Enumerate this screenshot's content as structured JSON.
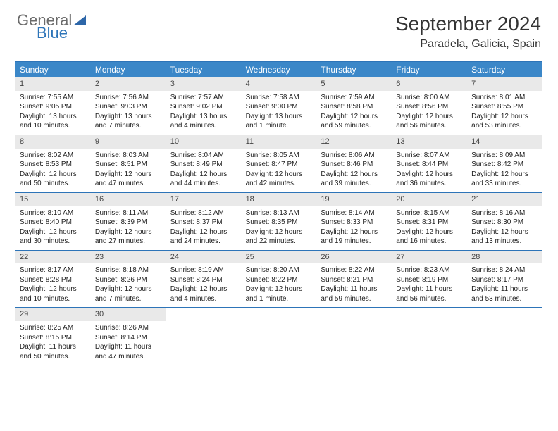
{
  "logo": {
    "top": "General",
    "bottom": "Blue"
  },
  "title": "September 2024",
  "location": "Paradela, Galicia, Spain",
  "colors": {
    "header_bar": "#3b87c8",
    "accent": "#2d74b8",
    "daynum_bg": "#e9e9e9",
    "text": "#222222",
    "logo_gray": "#6b6b6b",
    "logo_blue": "#2d74b8"
  },
  "calendar": {
    "type": "table",
    "day_names": [
      "Sunday",
      "Monday",
      "Tuesday",
      "Wednesday",
      "Thursday",
      "Friday",
      "Saturday"
    ],
    "weeks": [
      [
        {
          "n": "1",
          "sr": "7:55 AM",
          "ss": "9:05 PM",
          "dl": "13 hours and 10 minutes."
        },
        {
          "n": "2",
          "sr": "7:56 AM",
          "ss": "9:03 PM",
          "dl": "13 hours and 7 minutes."
        },
        {
          "n": "3",
          "sr": "7:57 AM",
          "ss": "9:02 PM",
          "dl": "13 hours and 4 minutes."
        },
        {
          "n": "4",
          "sr": "7:58 AM",
          "ss": "9:00 PM",
          "dl": "13 hours and 1 minute."
        },
        {
          "n": "5",
          "sr": "7:59 AM",
          "ss": "8:58 PM",
          "dl": "12 hours and 59 minutes."
        },
        {
          "n": "6",
          "sr": "8:00 AM",
          "ss": "8:56 PM",
          "dl": "12 hours and 56 minutes."
        },
        {
          "n": "7",
          "sr": "8:01 AM",
          "ss": "8:55 PM",
          "dl": "12 hours and 53 minutes."
        }
      ],
      [
        {
          "n": "8",
          "sr": "8:02 AM",
          "ss": "8:53 PM",
          "dl": "12 hours and 50 minutes."
        },
        {
          "n": "9",
          "sr": "8:03 AM",
          "ss": "8:51 PM",
          "dl": "12 hours and 47 minutes."
        },
        {
          "n": "10",
          "sr": "8:04 AM",
          "ss": "8:49 PM",
          "dl": "12 hours and 44 minutes."
        },
        {
          "n": "11",
          "sr": "8:05 AM",
          "ss": "8:47 PM",
          "dl": "12 hours and 42 minutes."
        },
        {
          "n": "12",
          "sr": "8:06 AM",
          "ss": "8:46 PM",
          "dl": "12 hours and 39 minutes."
        },
        {
          "n": "13",
          "sr": "8:07 AM",
          "ss": "8:44 PM",
          "dl": "12 hours and 36 minutes."
        },
        {
          "n": "14",
          "sr": "8:09 AM",
          "ss": "8:42 PM",
          "dl": "12 hours and 33 minutes."
        }
      ],
      [
        {
          "n": "15",
          "sr": "8:10 AM",
          "ss": "8:40 PM",
          "dl": "12 hours and 30 minutes."
        },
        {
          "n": "16",
          "sr": "8:11 AM",
          "ss": "8:39 PM",
          "dl": "12 hours and 27 minutes."
        },
        {
          "n": "17",
          "sr": "8:12 AM",
          "ss": "8:37 PM",
          "dl": "12 hours and 24 minutes."
        },
        {
          "n": "18",
          "sr": "8:13 AM",
          "ss": "8:35 PM",
          "dl": "12 hours and 22 minutes."
        },
        {
          "n": "19",
          "sr": "8:14 AM",
          "ss": "8:33 PM",
          "dl": "12 hours and 19 minutes."
        },
        {
          "n": "20",
          "sr": "8:15 AM",
          "ss": "8:31 PM",
          "dl": "12 hours and 16 minutes."
        },
        {
          "n": "21",
          "sr": "8:16 AM",
          "ss": "8:30 PM",
          "dl": "12 hours and 13 minutes."
        }
      ],
      [
        {
          "n": "22",
          "sr": "8:17 AM",
          "ss": "8:28 PM",
          "dl": "12 hours and 10 minutes."
        },
        {
          "n": "23",
          "sr": "8:18 AM",
          "ss": "8:26 PM",
          "dl": "12 hours and 7 minutes."
        },
        {
          "n": "24",
          "sr": "8:19 AM",
          "ss": "8:24 PM",
          "dl": "12 hours and 4 minutes."
        },
        {
          "n": "25",
          "sr": "8:20 AM",
          "ss": "8:22 PM",
          "dl": "12 hours and 1 minute."
        },
        {
          "n": "26",
          "sr": "8:22 AM",
          "ss": "8:21 PM",
          "dl": "11 hours and 59 minutes."
        },
        {
          "n": "27",
          "sr": "8:23 AM",
          "ss": "8:19 PM",
          "dl": "11 hours and 56 minutes."
        },
        {
          "n": "28",
          "sr": "8:24 AM",
          "ss": "8:17 PM",
          "dl": "11 hours and 53 minutes."
        }
      ],
      [
        {
          "n": "29",
          "sr": "8:25 AM",
          "ss": "8:15 PM",
          "dl": "11 hours and 50 minutes."
        },
        {
          "n": "30",
          "sr": "8:26 AM",
          "ss": "8:14 PM",
          "dl": "11 hours and 47 minutes."
        },
        null,
        null,
        null,
        null,
        null
      ]
    ],
    "labels": {
      "sunrise": "Sunrise:",
      "sunset": "Sunset:",
      "daylight": "Daylight:"
    }
  }
}
